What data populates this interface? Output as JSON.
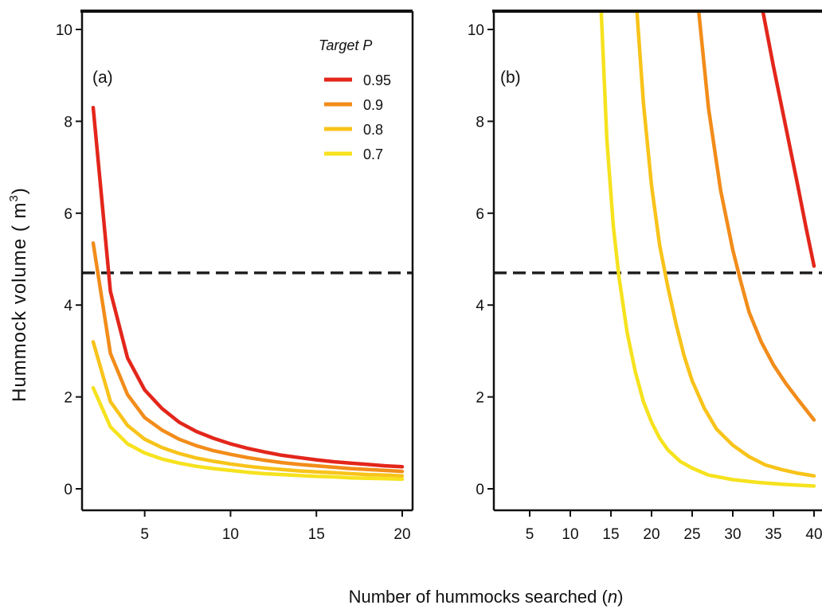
{
  "chart_data": {
    "type": "line",
    "ylabel_main": "Hummock volume ( m",
    "ylabel_sup": "3",
    "ylabel_close": ")",
    "xlabel_main": "Number of hummocks searched (",
    "xlabel_var": "n",
    "xlabel_close": ")",
    "legend": {
      "title_main": "Target ",
      "title_var": "P",
      "placement": "top-right of panel (a)"
    },
    "reference_line": {
      "y": 4.7,
      "style": "dashed"
    },
    "colors": {
      "0.95": "#e3261b",
      "0.9": "#f28c1a",
      "0.8": "#f8c31a",
      "0.7": "#f6e21e"
    },
    "panels": [
      {
        "label": "(a)",
        "xlim": [
          1.5,
          20.5
        ],
        "ylim": [
          -0.3,
          10.4
        ],
        "xticks": [
          5,
          10,
          15,
          20
        ],
        "yticks": [
          0,
          2,
          4,
          6,
          8,
          10
        ],
        "ytick_labels": [
          "0",
          "2",
          "4",
          "6",
          "8",
          "10"
        ],
        "series": [
          {
            "name": "0.95",
            "color": "#e3261b",
            "x": [
              2,
              3,
              4,
              5,
              6,
              7,
              8,
              9,
              10,
              11,
              12,
              13,
              14,
              15,
              16,
              17,
              18,
              19,
              20
            ],
            "y": [
              8.3,
              4.3,
              2.85,
              2.15,
              1.75,
              1.45,
              1.25,
              1.1,
              0.98,
              0.88,
              0.8,
              0.73,
              0.68,
              0.63,
              0.59,
              0.56,
              0.53,
              0.5,
              0.48
            ]
          },
          {
            "name": "0.9",
            "color": "#f28c1a",
            "x": [
              2,
              3,
              4,
              5,
              6,
              7,
              8,
              9,
              10,
              11,
              12,
              13,
              14,
              15,
              16,
              17,
              18,
              19,
              20
            ],
            "y": [
              5.35,
              2.95,
              2.05,
              1.55,
              1.28,
              1.08,
              0.94,
              0.83,
              0.75,
              0.68,
              0.62,
              0.57,
              0.53,
              0.5,
              0.47,
              0.44,
              0.42,
              0.4,
              0.38
            ]
          },
          {
            "name": "0.8",
            "color": "#f8c31a",
            "x": [
              2,
              3,
              4,
              5,
              6,
              7,
              8,
              9,
              10,
              11,
              12,
              13,
              14,
              15,
              16,
              17,
              18,
              19,
              20
            ],
            "y": [
              3.2,
              1.9,
              1.38,
              1.08,
              0.9,
              0.77,
              0.67,
              0.6,
              0.54,
              0.49,
              0.45,
              0.42,
              0.39,
              0.37,
              0.35,
              0.33,
              0.31,
              0.3,
              0.28
            ]
          },
          {
            "name": "0.7",
            "color": "#f6e21e",
            "x": [
              2,
              3,
              4,
              5,
              6,
              7,
              8,
              9,
              10,
              11,
              12,
              13,
              14,
              15,
              16,
              17,
              18,
              19,
              20
            ],
            "y": [
              2.2,
              1.35,
              0.98,
              0.78,
              0.65,
              0.56,
              0.49,
              0.44,
              0.4,
              0.36,
              0.33,
              0.31,
              0.29,
              0.27,
              0.26,
              0.24,
              0.23,
              0.22,
              0.21
            ]
          }
        ]
      },
      {
        "label": "(b)",
        "xlim": [
          0,
          40
        ],
        "ylim": [
          -0.3,
          10.4
        ],
        "xticks": [
          5,
          10,
          15,
          20,
          25,
          30,
          35,
          40
        ],
        "yticks": [
          0,
          2,
          4,
          6,
          8,
          10
        ],
        "ytick_labels": [
          "0",
          "2",
          "4",
          "6",
          "8",
          "10"
        ],
        "series": [
          {
            "name": "0.95",
            "color": "#e3261b",
            "x": [
              33.7,
              35,
              36.5,
              38,
              39,
              40
            ],
            "y": [
              10.4,
              9.2,
              7.9,
              6.6,
              5.7,
              4.85
            ]
          },
          {
            "name": "0.9",
            "color": "#f28c1a",
            "x": [
              25.8,
              27,
              28.5,
              30,
              31,
              32,
              33.5,
              35,
              36.5,
              38,
              40
            ],
            "y": [
              10.4,
              8.3,
              6.5,
              5.2,
              4.5,
              3.85,
              3.2,
              2.7,
              2.3,
              1.95,
              1.5
            ]
          },
          {
            "name": "0.8",
            "color": "#f8c31a",
            "x": [
              18.2,
              19,
              20,
              21,
              22,
              23,
              24,
              25,
              26.5,
              28,
              30,
              32,
              34,
              36,
              38,
              40
            ],
            "y": [
              10.4,
              8.4,
              6.6,
              5.3,
              4.4,
              3.6,
              2.9,
              2.35,
              1.75,
              1.3,
              0.95,
              0.7,
              0.52,
              0.42,
              0.34,
              0.28
            ]
          },
          {
            "name": "0.7",
            "color": "#f6e21e",
            "x": [
              13.8,
              14.5,
              15.3,
              16,
              17,
              18,
              19,
              20,
              21,
              22,
              23.5,
              25,
              27,
              30,
              33,
              36,
              40
            ],
            "y": [
              10.4,
              7.6,
              5.7,
              4.6,
              3.4,
              2.55,
              1.9,
              1.45,
              1.1,
              0.85,
              0.6,
              0.45,
              0.3,
              0.2,
              0.14,
              0.1,
              0.06
            ]
          }
        ]
      }
    ]
  }
}
